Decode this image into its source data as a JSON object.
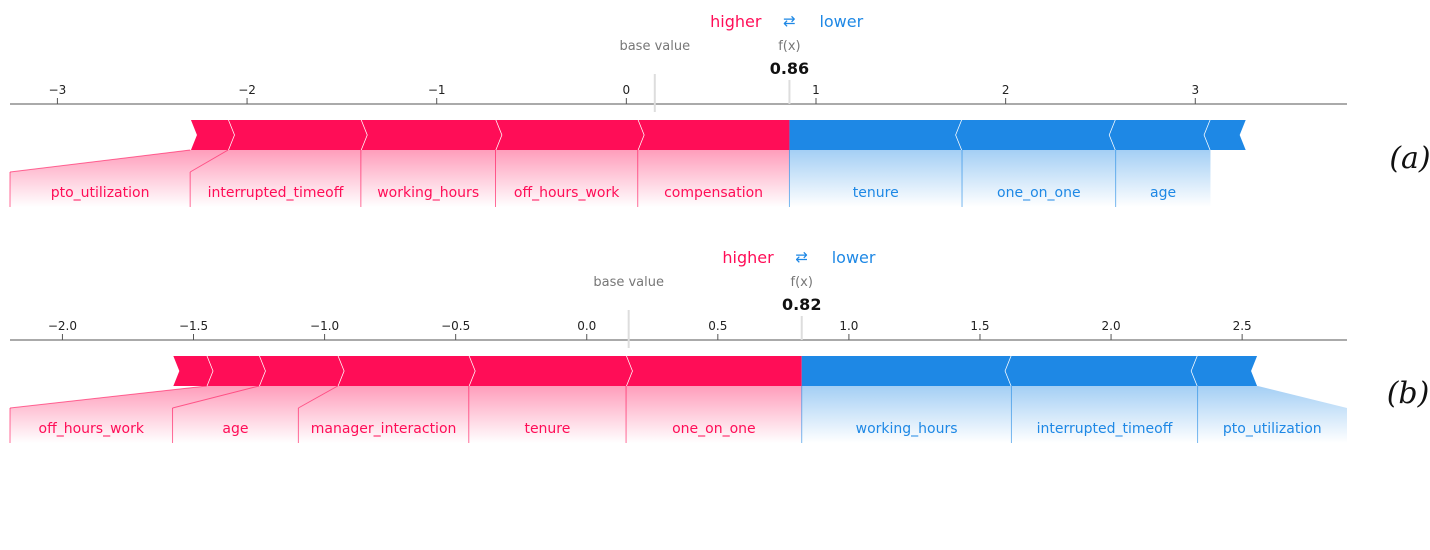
{
  "chart_data": [
    {
      "type": "force",
      "panel": "(a)",
      "legend": {
        "higher": "higher",
        "lower": "lower",
        "arrow": "⇄"
      },
      "base_value_label": "base value",
      "fx_label": "f(x)",
      "base_value": 0.15,
      "fx": 0.86,
      "fx_text": "0.86",
      "xlim": [
        -3.25,
        3.8
      ],
      "ticks": [
        {
          "v": -3,
          "label": "−3"
        },
        {
          "v": -2,
          "label": "−2"
        },
        {
          "v": -1,
          "label": "−1"
        },
        {
          "v": 0,
          "label": "0"
        },
        {
          "v": 1,
          "label": "1"
        },
        {
          "v": 2,
          "label": "2"
        },
        {
          "v": 3,
          "label": "3"
        }
      ],
      "positive": [
        {
          "feature": "compensation",
          "start": 0.06,
          "end": 0.86
        },
        {
          "feature": "off_hours_work",
          "start": -0.69,
          "end": 0.06
        },
        {
          "feature": "working_hours",
          "start": -1.4,
          "end": -0.69
        },
        {
          "feature": "interrupted_timeoff",
          "start": -2.1,
          "end": -1.4
        },
        {
          "feature": "pto_utilization",
          "start": -2.3,
          "end": -2.1
        }
      ],
      "negative": [
        {
          "feature": "tenure",
          "start": 0.86,
          "end": 1.77
        },
        {
          "feature": "one_on_one",
          "start": 1.77,
          "end": 2.58
        },
        {
          "feature": "age",
          "start": 2.58,
          "end": 3.08
        },
        {
          "feature": "",
          "start": 3.08,
          "end": 3.27
        }
      ],
      "labels_positive": [
        {
          "text": "compensation",
          "left": 0.06,
          "right": 0.86
        },
        {
          "text": "off_hours_work",
          "left": -0.69,
          "right": 0.06
        },
        {
          "text": "working_hours",
          "left": -1.4,
          "right": -0.69
        },
        {
          "text": "interrupted_timeoff",
          "left": -2.3,
          "right": -1.4
        },
        {
          "text": "pto_utilization",
          "left": -3.25,
          "right": -2.3
        }
      ],
      "labels_negative": [
        {
          "text": "tenure",
          "left": 0.86,
          "right": 1.77
        },
        {
          "text": "one_on_one",
          "left": 1.77,
          "right": 2.58
        },
        {
          "text": "age",
          "left": 2.58,
          "right": 3.08
        }
      ]
    },
    {
      "type": "force",
      "panel": "(b)",
      "legend": {
        "higher": "higher",
        "lower": "lower",
        "arrow": "⇄"
      },
      "base_value_label": "base value",
      "fx_label": "f(x)",
      "base_value": 0.16,
      "fx": 0.82,
      "fx_text": "0.82",
      "xlim": [
        -2.2,
        2.9
      ],
      "ticks": [
        {
          "v": -2.0,
          "label": "−2.0"
        },
        {
          "v": -1.5,
          "label": "−1.5"
        },
        {
          "v": -1.0,
          "label": "−1.0"
        },
        {
          "v": -0.5,
          "label": "−0.5"
        },
        {
          "v": 0.0,
          "label": "0.0"
        },
        {
          "v": 0.5,
          "label": "0.5"
        },
        {
          "v": 1.0,
          "label": "1.0"
        },
        {
          "v": 1.5,
          "label": "1.5"
        },
        {
          "v": 2.0,
          "label": "2.0"
        },
        {
          "v": 2.5,
          "label": "2.5"
        }
      ],
      "positive": [
        {
          "feature": "one_on_one",
          "start": 0.15,
          "end": 0.82
        },
        {
          "feature": "tenure",
          "start": -0.45,
          "end": 0.15
        },
        {
          "feature": "manager_interaction",
          "start": -0.95,
          "end": -0.45
        },
        {
          "feature": "age",
          "start": -1.25,
          "end": -0.95
        },
        {
          "feature": "off_hours_work",
          "start": -1.45,
          "end": -1.25
        },
        {
          "feature": "",
          "start": -1.58,
          "end": -1.45
        }
      ],
      "negative": [
        {
          "feature": "working_hours",
          "start": 0.82,
          "end": 1.62
        },
        {
          "feature": "interrupted_timeoff",
          "start": 1.62,
          "end": 2.33
        },
        {
          "feature": "pto_utilization",
          "start": 2.33,
          "end": 2.56
        }
      ],
      "labels_positive": [
        {
          "text": "one_on_one",
          "left": 0.15,
          "right": 0.82
        },
        {
          "text": "tenure",
          "left": -0.45,
          "right": 0.15
        },
        {
          "text": "manager_interaction",
          "left": -1.1,
          "right": -0.45
        },
        {
          "text": "age",
          "left": -1.58,
          "right": -1.1
        },
        {
          "text": "off_hours_work",
          "left": -2.2,
          "right": -1.58
        }
      ],
      "labels_negative": [
        {
          "text": "working_hours",
          "left": 0.82,
          "right": 1.62
        },
        {
          "text": "interrupted_timeoff",
          "left": 1.62,
          "right": 2.33
        },
        {
          "text": "pto_utilization",
          "left": 2.33,
          "right": 2.9
        }
      ]
    }
  ],
  "colors": {
    "positive": "#ff0d57",
    "negative": "#1e88e5"
  }
}
